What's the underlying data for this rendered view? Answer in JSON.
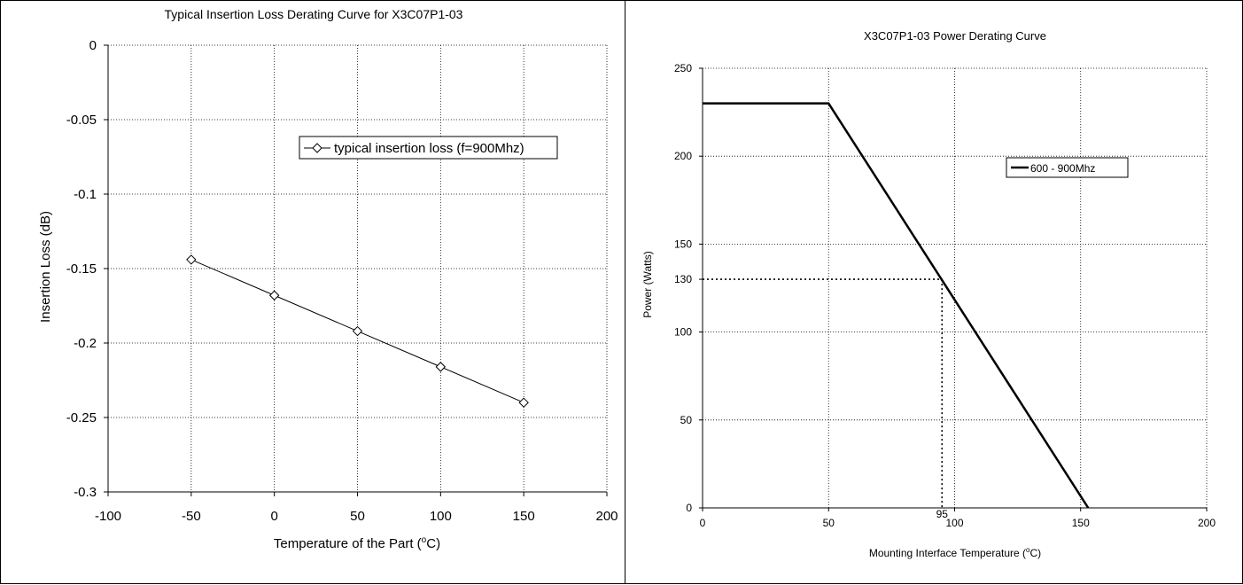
{
  "chart_data": [
    {
      "type": "line",
      "title": "Typical Insertion Loss Derating Curve for X3C07P1-03",
      "xlabel": "Temperature of the Part (°C)",
      "xlabel_main": "Temperature of the Part (",
      "xlabel_deg": "o",
      "xlabel_end": "C)",
      "ylabel": "Insertion Loss (dB)",
      "xlim": [
        -100,
        200
      ],
      "ylim": [
        -0.3,
        0
      ],
      "xticks": [
        -100,
        -50,
        0,
        50,
        100,
        150,
        200
      ],
      "xtick_labels": [
        "-100",
        "-50",
        "0",
        "50",
        "100",
        "150",
        "200"
      ],
      "yticks": [
        0,
        -0.05,
        -0.1,
        -0.15,
        -0.2,
        -0.25,
        -0.3
      ],
      "ytick_labels": [
        "0",
        "-0.05",
        "-0.1",
        "-0.15",
        "-0.2",
        "-0.25",
        "-0.3"
      ],
      "grid": true,
      "legend_position": "upper-right",
      "series": [
        {
          "name": "typical insertion loss (f=900Mhz)",
          "marker": "diamond",
          "x": [
            -50,
            0,
            50,
            100,
            150
          ],
          "y": [
            -0.144,
            -0.168,
            -0.192,
            -0.216,
            -0.24
          ]
        }
      ]
    },
    {
      "type": "line",
      "title": "X3C07P1-03 Power Derating Curve",
      "xlabel": "Mounting Interface Temperature (°C)",
      "xlabel_main": "Mounting Interface Temperature (",
      "xlabel_deg": "o",
      "xlabel_end": "C)",
      "ylabel": "Power (Watts)",
      "xlim": [
        0,
        200
      ],
      "ylim": [
        0,
        250
      ],
      "xticks": [
        0,
        50,
        100,
        150,
        200
      ],
      "xtick_labels": [
        "0",
        "50",
        "100",
        "150",
        "200"
      ],
      "yticks": [
        0,
        50,
        100,
        130,
        150,
        200,
        250
      ],
      "ytick_labels": [
        "0",
        "50",
        "100",
        "130",
        "150",
        "200",
        "250"
      ],
      "extra_xtick": 95,
      "extra_xtick_label": "95",
      "grid": true,
      "legend_position": "upper-right",
      "series": [
        {
          "name": "600 - 900Mhz",
          "x": [
            0,
            50,
            153
          ],
          "y": [
            230,
            230,
            0
          ]
        }
      ],
      "reference_point": {
        "x": 95,
        "y": 130
      }
    }
  ]
}
